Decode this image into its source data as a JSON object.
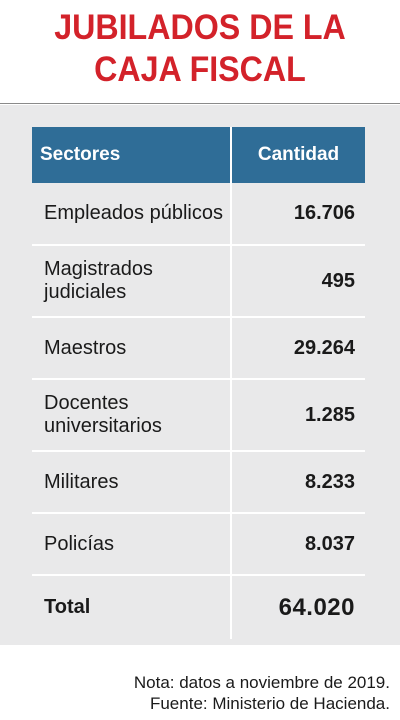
{
  "title": {
    "line1": "JUBILADOS DE LA",
    "line2": "CAJA FISCAL"
  },
  "table": {
    "headers": {
      "sector": "Sectores",
      "quantity": "Cantidad"
    },
    "rows": [
      {
        "sector": "Empleados públicos",
        "quantity": "16.706"
      },
      {
        "sector": "Magistrados judiciales",
        "quantity": "495"
      },
      {
        "sector": "Maestros",
        "quantity": "29.264"
      },
      {
        "sector": "Docentes universitarios",
        "quantity": "1.285"
      },
      {
        "sector": "Militares",
        "quantity": "8.233"
      },
      {
        "sector": "Policías",
        "quantity": "8.037"
      }
    ],
    "total": {
      "label": "Total",
      "quantity": "64.020"
    }
  },
  "notes": {
    "note": "Nota: datos a noviembre de 2019.",
    "source": "Fuente: Ministerio de Hacienda."
  },
  "colors": {
    "title": "#d3222a",
    "header_bg": "#2f6d97",
    "panel_bg": "#e9e9ea"
  },
  "chart_data": {
    "type": "table",
    "title": "JUBILADOS DE LA CAJA FISCAL",
    "columns": [
      "Sectores",
      "Cantidad"
    ],
    "rows": [
      [
        "Empleados públicos",
        16706
      ],
      [
        "Magistrados judiciales",
        495
      ],
      [
        "Maestros",
        29264
      ],
      [
        "Docentes universitarios",
        1285
      ],
      [
        "Militares",
        8233
      ],
      [
        "Policías",
        8037
      ]
    ],
    "total": [
      "Total",
      64020
    ]
  }
}
